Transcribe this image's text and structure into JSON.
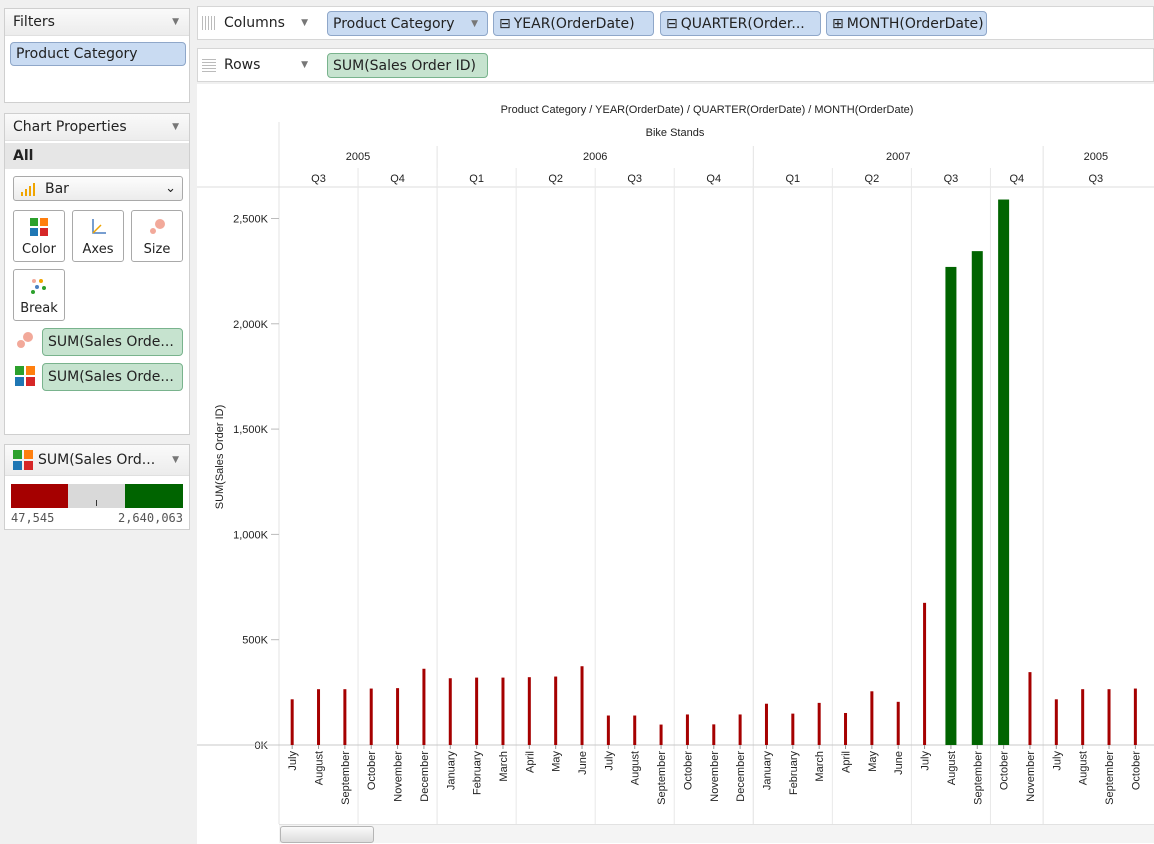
{
  "filters": {
    "title": "Filters",
    "items": [
      "Product Category"
    ]
  },
  "chart_properties": {
    "title": "Chart Properties",
    "scope": "All",
    "mark_type": "Bar",
    "cards": [
      "Color",
      "Axes",
      "Size",
      "Break"
    ],
    "fields": [
      {
        "icon": "size-circles-icon",
        "label": "SUM(Sales Orde..."
      },
      {
        "icon": "color-squares-icon",
        "label": "SUM(Sales Orde..."
      }
    ]
  },
  "legend": {
    "title": "SUM(Sales Ord...",
    "min_label": "47,545",
    "max_label": "2,640,063",
    "low_color": "#a50000",
    "mid_color": "#d9d9d9",
    "high_color": "#006400"
  },
  "shelves": {
    "columns_label": "Columns",
    "rows_label": "Rows",
    "columns_pills": [
      {
        "label": "Product Category",
        "prefix": ""
      },
      {
        "label": "YEAR(OrderDate)",
        "prefix": "⊟"
      },
      {
        "label": "QUARTER(Order...",
        "prefix": "⊟"
      },
      {
        "label": "MONTH(OrderDate)",
        "prefix": "⊞"
      }
    ],
    "rows_pills": [
      {
        "label": "SUM(Sales Order ID)"
      }
    ]
  },
  "chart_data": {
    "type": "bar",
    "title": "Product Category / YEAR(OrderDate) / QUARTER(OrderDate) / MONTH(OrderDate)",
    "category_header": "Bike Stands",
    "ylabel": "SUM(Sales Order ID)",
    "ylim": [
      0,
      2640000
    ],
    "yticks": [
      0,
      500000,
      1000000,
      1500000,
      2000000,
      2500000
    ],
    "ytick_labels": [
      "0K",
      "500K",
      "1,000K",
      "1,500K",
      "2,000K",
      "2,500K"
    ],
    "years": [
      {
        "label": "2005",
        "quarters": 2
      },
      {
        "label": "2006",
        "quarters": 4
      },
      {
        "label": "2007",
        "quarters": 4
      },
      {
        "label": "2005",
        "quarters": 1
      }
    ],
    "quarters": [
      {
        "label": "Q3",
        "months": 3
      },
      {
        "label": "Q4",
        "months": 3
      },
      {
        "label": "Q1",
        "months": 3
      },
      {
        "label": "Q2",
        "months": 3
      },
      {
        "label": "Q3",
        "months": 3
      },
      {
        "label": "Q4",
        "months": 3
      },
      {
        "label": "Q1",
        "months": 3
      },
      {
        "label": "Q2",
        "months": 3
      },
      {
        "label": "Q3",
        "months": 3
      },
      {
        "label": "Q4",
        "months": 2
      },
      {
        "label": "Q3",
        "months": 4
      }
    ],
    "categories": [
      "July",
      "August",
      "September",
      "October",
      "November",
      "December",
      "January",
      "February",
      "March",
      "April",
      "May",
      "June",
      "July",
      "August",
      "September",
      "October",
      "November",
      "December",
      "January",
      "February",
      "March",
      "April",
      "May",
      "June",
      "July",
      "August",
      "September",
      "October",
      "November",
      "July",
      "August",
      "September",
      "October"
    ],
    "values": [
      217000,
      265000,
      265000,
      268000,
      270000,
      362000,
      317000,
      320000,
      320000,
      322000,
      325000,
      374000,
      140000,
      140000,
      97000,
      145000,
      98000,
      145000,
      196000,
      149000,
      200000,
      152000,
      255000,
      205000,
      675000,
      2270000,
      2345000,
      2590000,
      346000,
      217000,
      265000,
      265000,
      268000
    ],
    "thick": [
      false,
      false,
      false,
      false,
      false,
      false,
      false,
      false,
      false,
      false,
      false,
      false,
      false,
      false,
      false,
      false,
      false,
      false,
      false,
      false,
      false,
      false,
      false,
      false,
      false,
      true,
      true,
      true,
      false,
      false,
      false,
      false,
      false
    ]
  }
}
